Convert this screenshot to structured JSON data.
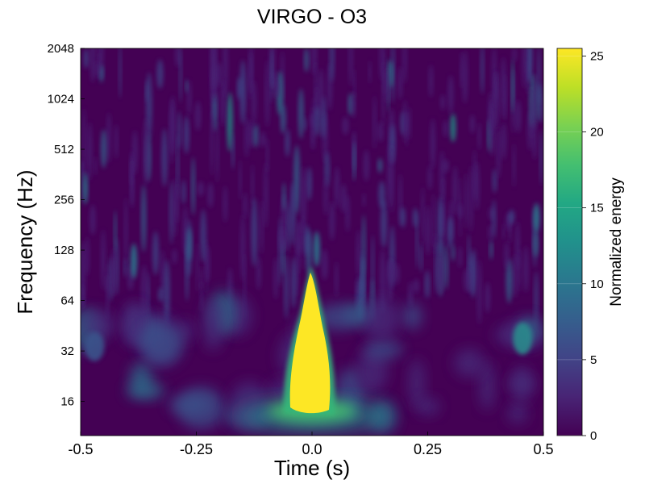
{
  "chart_data": {
    "type": "heatmap",
    "title": "VIRGO - O3",
    "xlabel": "Time (s)",
    "ylabel": "Frequency (Hz)",
    "xlim": [
      -0.5,
      0.5
    ],
    "ylim": [
      10,
      2048
    ],
    "yscale": "log2",
    "xticks": [
      -0.5,
      -0.25,
      0.0,
      0.25,
      0.5
    ],
    "xtick_labels": [
      "-0.5",
      "-0.25",
      "0.0",
      "0.25",
      "0.5"
    ],
    "yticks": [
      16,
      32,
      64,
      128,
      256,
      512,
      1024,
      2048
    ],
    "ytick_labels": [
      "16",
      "32",
      "64",
      "128",
      "256",
      "512",
      "1024",
      "2048"
    ],
    "colorbar": {
      "label": "Normalized energy",
      "range": [
        0,
        25.5
      ],
      "ticks": [
        0,
        5,
        10,
        15,
        20,
        25
      ],
      "tick_labels": [
        "0",
        "5",
        "10",
        "15",
        "20",
        "25"
      ],
      "colormap": "viridis"
    },
    "features": [
      {
        "name": "chirp",
        "time": 0.0,
        "freq_min": 12,
        "freq_max": 90,
        "energy": 25.5
      },
      {
        "name": "low-frequency-spread",
        "time": 0.0,
        "freq_min": 11,
        "freq_max": 16,
        "energy": 12
      }
    ],
    "background_energy": 1.5,
    "grid": false
  },
  "colors": {
    "viridis_low": "#440154",
    "viridis_high": "#fde725"
  }
}
